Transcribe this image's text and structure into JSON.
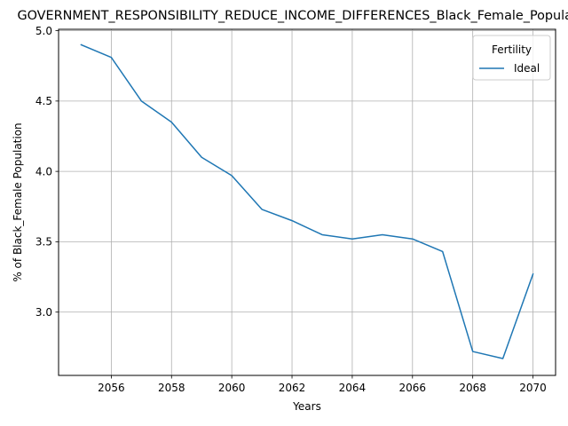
{
  "chart_data": {
    "type": "line",
    "title": "GOVERNMENT_RESPONSIBILITY_REDUCE_INCOME_DIFFERENCES_Black_Female_Population",
    "xlabel": "Years",
    "ylabel": "% of Black_Female Population",
    "xlim": [
      2054.25,
      2070.75
    ],
    "ylim": [
      2.55,
      5.01
    ],
    "x_ticks": [
      2056,
      2058,
      2060,
      2062,
      2064,
      2066,
      2068,
      2070
    ],
    "x_tick_labels": [
      "2056",
      "2058",
      "2060",
      "2062",
      "2064",
      "2066",
      "2068",
      "2070"
    ],
    "y_ticks": [
      3.0,
      3.5,
      4.0,
      4.5,
      5.0
    ],
    "y_tick_labels": [
      "3.0",
      "3.5",
      "4.0",
      "4.5",
      "5.0"
    ],
    "grid": true,
    "legend": {
      "title": "Fertility",
      "placement": "top-right"
    },
    "series": [
      {
        "name": "Ideal",
        "color": "#1f77b4",
        "x": [
          2055,
          2056,
          2057,
          2058,
          2059,
          2060,
          2061,
          2062,
          2063,
          2064,
          2065,
          2066,
          2067,
          2068,
          2069,
          2070
        ],
        "values": [
          4.9,
          4.81,
          4.5,
          4.35,
          4.1,
          3.97,
          3.73,
          3.65,
          3.55,
          3.52,
          3.55,
          3.52,
          3.43,
          2.72,
          2.67,
          3.27
        ]
      }
    ]
  }
}
